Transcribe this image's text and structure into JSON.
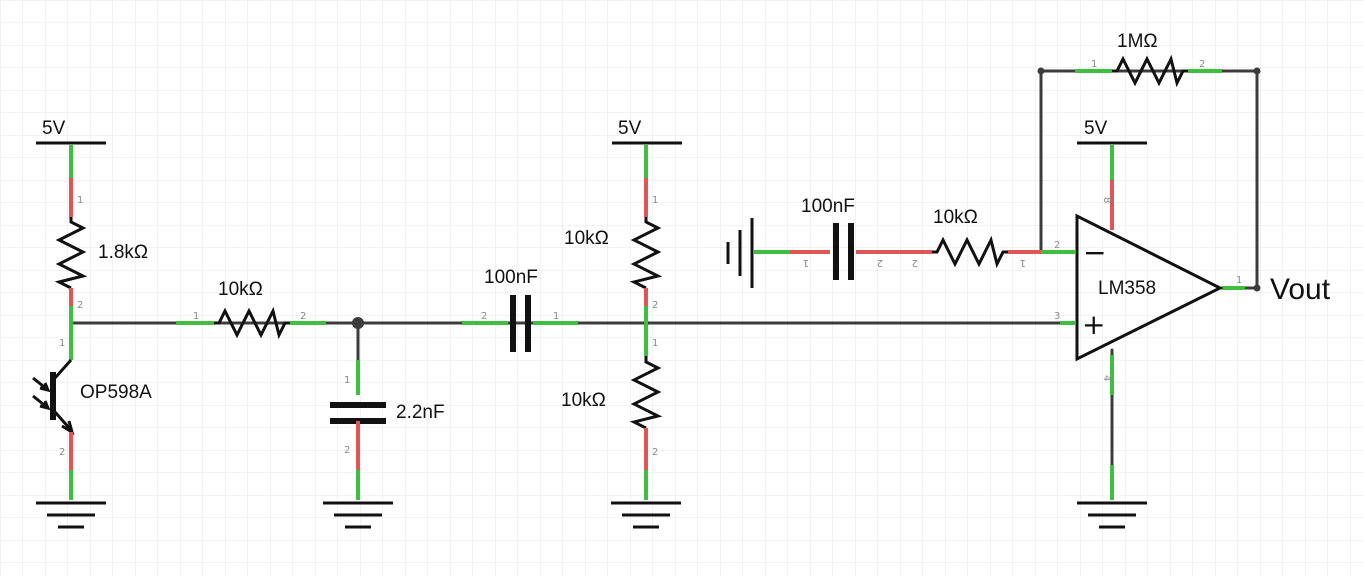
{
  "colors": {
    "background": "#ffffff",
    "grid": "#e6e6e6",
    "wire": "#3c3c3c",
    "symbol": "#111111",
    "pin_connected": "#3fbf3f",
    "pin_unconnected": "#e05555",
    "pin_number": "#8a8a8a"
  },
  "supply_labels": {
    "s1": "5V",
    "s2": "5V",
    "s3": "5V"
  },
  "components": {
    "r_1k8": {
      "value": "1.8kΩ"
    },
    "phototransistor": {
      "value": "OP598A"
    },
    "r_10k_a": {
      "value": "10kΩ"
    },
    "c_2n2": {
      "value": "2.2nF"
    },
    "c_100n_a": {
      "value": "100nF"
    },
    "r_10k_top": {
      "value": "10kΩ"
    },
    "r_10k_bot": {
      "value": "10kΩ"
    },
    "c_100n_b": {
      "value": "100nF"
    },
    "r_10k_b": {
      "value": "10kΩ"
    },
    "r_1m": {
      "value": "1MΩ"
    },
    "opamp": {
      "value": "LM358",
      "minus": "−",
      "plus": "+"
    }
  },
  "output_label": "Vout",
  "pin_numbers": {
    "r_1k8": [
      "1",
      "2"
    ],
    "phototransistor": [
      "1",
      "2"
    ],
    "r_10k_a": [
      "1",
      "2"
    ],
    "c_2n2": [
      "1",
      "2"
    ],
    "c_100n_a": [
      "2",
      "1"
    ],
    "r_10k_top": [
      "1",
      "2"
    ],
    "r_10k_bot": [
      "1",
      "2"
    ],
    "c_100n_b": [
      "1",
      "2"
    ],
    "r_10k_b": [
      "2",
      "1"
    ],
    "r_1m": [
      "1",
      "2"
    ],
    "opamp": [
      "8",
      "2",
      "3",
      "1",
      "4"
    ]
  }
}
